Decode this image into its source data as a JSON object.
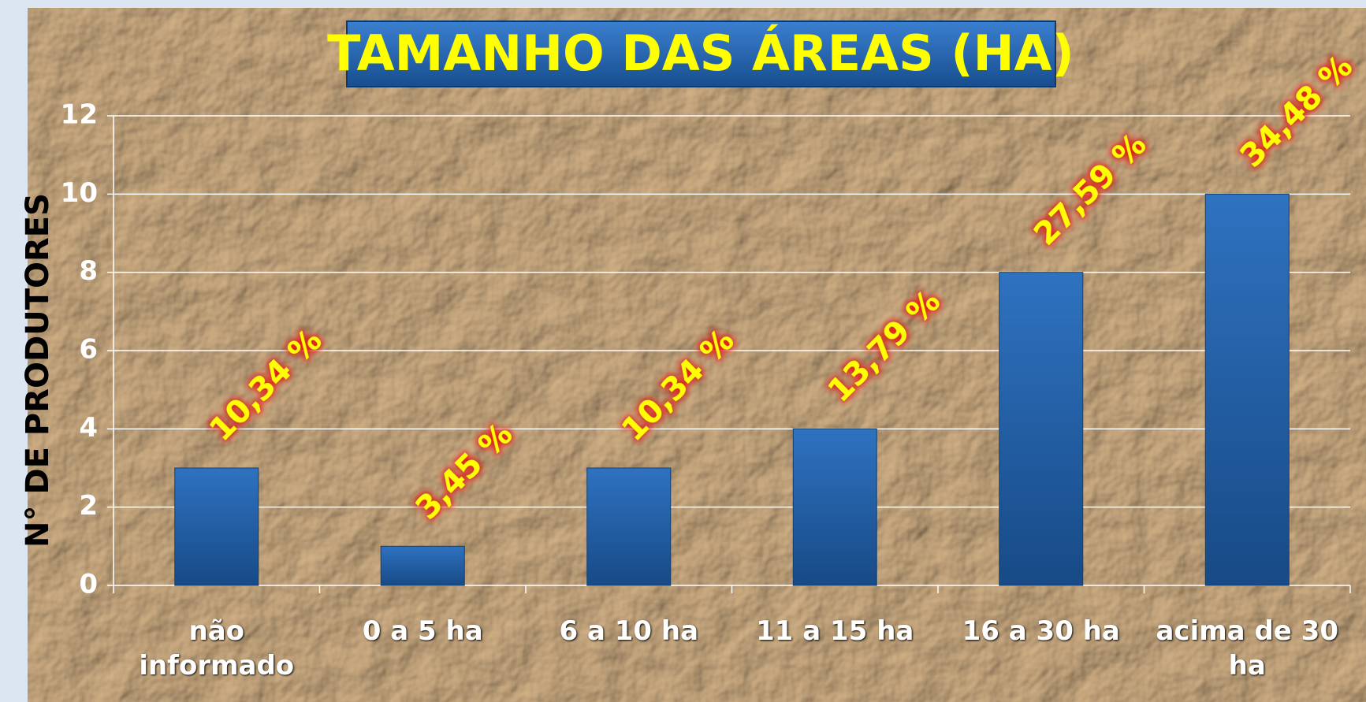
{
  "chart_data": {
    "type": "bar",
    "title": "TAMANHO DAS ÁREAS (HA)",
    "y_label": "N° DE PRODUTORES",
    "categories": [
      "não informado",
      "0 a 5 ha",
      "6 a 10 ha",
      "11 a 15 ha",
      "16 a 30 ha",
      "acima de 30 ha"
    ],
    "values": [
      3,
      1,
      3,
      4,
      8,
      10
    ],
    "data_labels": [
      "10,34 %",
      "3,45 %",
      "10,34 %",
      "13,79 %",
      "27,59 %",
      "34,48 %"
    ],
    "color": "#1f5fa8",
    "ylim": [
      0,
      12
    ],
    "yticks": [
      0,
      2,
      4,
      6,
      8,
      10,
      12
    ],
    "grid": true
  }
}
